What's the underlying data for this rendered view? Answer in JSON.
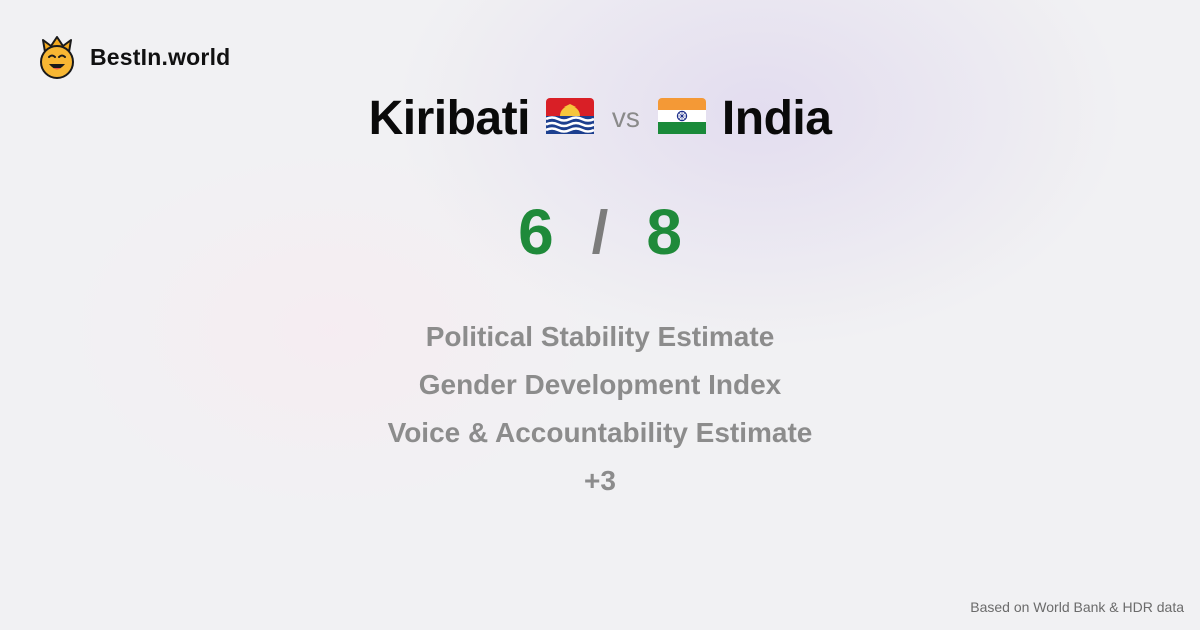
{
  "brand": {
    "name": "BestIn.world",
    "icon": "crowned-smiley-icon"
  },
  "comparison": {
    "left_country": "Kiribati",
    "left_flag": "kiribati-flag-icon",
    "vs_label": "vs",
    "right_country": "India",
    "right_flag": "india-flag-icon"
  },
  "score": {
    "left": "6",
    "separator": "/",
    "right": "8",
    "color": "#1f8a3a"
  },
  "metrics": [
    "Political Stability Estimate",
    "Gender Development Index",
    "Voice & Accountability Estimate",
    "+3"
  ],
  "footer": {
    "source": "Based on World Bank & HDR data"
  }
}
